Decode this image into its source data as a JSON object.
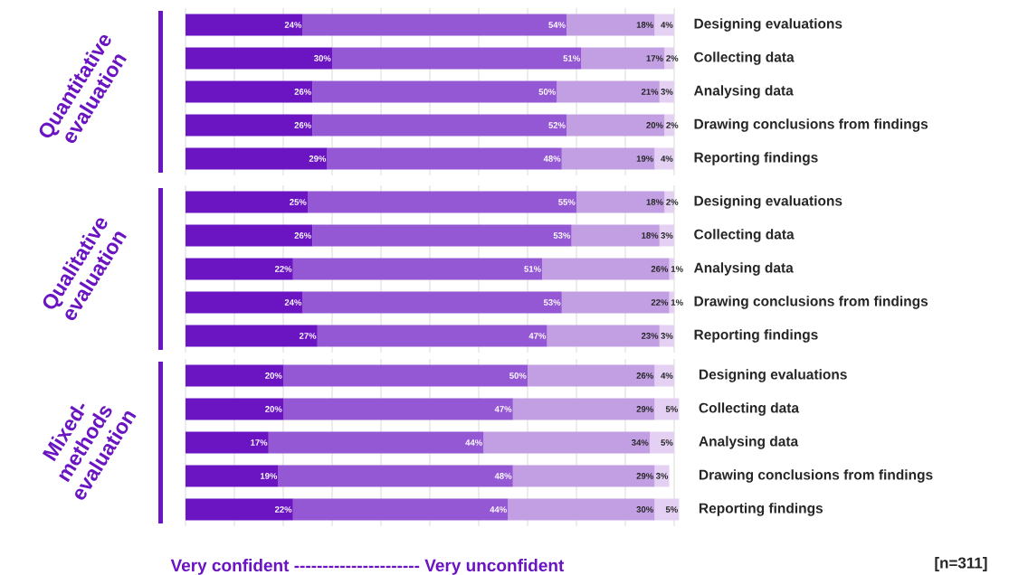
{
  "chart_data": [
    {
      "type": "bar",
      "orientation": "horizontal",
      "stacked": true,
      "title": "Quantitative evaluation",
      "categories": [
        "Designing evaluations",
        "Collecting data",
        "Analysing data",
        "Drawing conclusions from findings",
        "Reporting findings"
      ],
      "series": [
        {
          "color": "#6a14c2",
          "values": [
            24,
            30,
            26,
            26,
            29
          ],
          "value_labels": [
            "24%",
            "30%",
            "26%",
            "26%",
            "29%"
          ]
        },
        {
          "color": "#9558d4",
          "values": [
            54,
            51,
            50,
            52,
            48
          ],
          "value_labels": [
            "54%",
            "51%",
            "50%",
            "52%",
            "48%"
          ]
        },
        {
          "color": "#c29fe3",
          "values": [
            18,
            17,
            21,
            20,
            19
          ],
          "value_labels": [
            "18%",
            "17%",
            "21%",
            "20%",
            "19%"
          ]
        },
        {
          "color": "#e3d0f3",
          "values": [
            4,
            2,
            3,
            2,
            4
          ],
          "value_labels": [
            "4%",
            "2%",
            "3%",
            "2%",
            "4%"
          ]
        }
      ],
      "xticks": [
        {
          "value": 0,
          "label": null
        },
        {
          "value": 10,
          "label": null
        },
        {
          "value": 20,
          "label": null
        },
        {
          "value": 30,
          "label": null
        },
        {
          "value": 40,
          "label": null
        },
        {
          "value": 50,
          "label": null
        },
        {
          "value": 60,
          "label": null
        },
        {
          "value": 70,
          "label": null
        },
        {
          "value": 80,
          "label": null
        },
        {
          "value": 90,
          "label": null
        },
        {
          "value": 100,
          "label": null
        }
      ],
      "grid": "x",
      "tick_labels": "y"
    },
    {
      "type": "bar",
      "orientation": "horizontal",
      "stacked": true,
      "title": "Qualitative evaluation",
      "categories": [
        "Designing evaluations",
        "Collecting data",
        "Analysing data",
        "Drawing conclusions from findings",
        "Reporting findings"
      ],
      "series": [
        {
          "color": "#6a14c2",
          "values": [
            25,
            26,
            22,
            24,
            27
          ],
          "value_labels": [
            "25%",
            "26%",
            "22%",
            "24%",
            "27%"
          ]
        },
        {
          "color": "#9558d4",
          "values": [
            55,
            53,
            51,
            53,
            47
          ],
          "value_labels": [
            "55%",
            "53%",
            "51%",
            "53%",
            "47%"
          ]
        },
        {
          "color": "#c29fe3",
          "values": [
            18,
            18,
            26,
            22,
            23
          ],
          "value_labels": [
            "18%",
            "18%",
            "26%",
            "22%",
            "23%"
          ]
        },
        {
          "color": "#e3d0f3",
          "values": [
            2,
            3,
            1,
            1,
            3
          ],
          "value_labels": [
            "2%",
            "3%",
            "1%",
            "1%",
            "3%"
          ]
        }
      ],
      "xticks": [
        {
          "value": 0,
          "label": null
        },
        {
          "value": 10,
          "label": null
        },
        {
          "value": 20,
          "label": null
        },
        {
          "value": 30,
          "label": null
        },
        {
          "value": 40,
          "label": null
        },
        {
          "value": 50,
          "label": null
        },
        {
          "value": 60,
          "label": null
        },
        {
          "value": 70,
          "label": null
        },
        {
          "value": 80,
          "label": null
        },
        {
          "value": 90,
          "label": null
        },
        {
          "value": 100,
          "label": null
        }
      ],
      "grid": "x",
      "tick_labels": "y"
    },
    {
      "type": "bar",
      "orientation": "horizontal",
      "stacked": true,
      "title": "Mixed-methods evaluation",
      "categories": [
        "Designing evaluations",
        "Collecting data",
        "Analysing data",
        "Drawing conclusions from findings",
        "Reporting findings"
      ],
      "series": [
        {
          "color": "#6a14c2",
          "values": [
            20,
            20,
            17,
            19,
            22
          ],
          "value_labels": [
            "20%",
            "20%",
            "17%",
            "19%",
            "22%"
          ]
        },
        {
          "color": "#9558d4",
          "values": [
            50,
            47,
            44,
            48,
            44
          ],
          "value_labels": [
            "50%",
            "47%",
            "44%",
            "48%",
            "44%"
          ]
        },
        {
          "color": "#c29fe3",
          "values": [
            26,
            29,
            34,
            29,
            30
          ],
          "value_labels": [
            "26%",
            "29%",
            "34%",
            "29%",
            "30%"
          ]
        },
        {
          "color": "#e3d0f3",
          "values": [
            4,
            5,
            5,
            3,
            5
          ],
          "value_labels": [
            "4%",
            "5%",
            "5%",
            "3%",
            "5%"
          ]
        }
      ],
      "xticks": [
        {
          "value": 0,
          "label": null
        },
        {
          "value": 10,
          "label": null
        },
        {
          "value": 20,
          "label": null
        },
        {
          "value": 30,
          "label": null
        },
        {
          "value": 40,
          "label": null
        },
        {
          "value": 50,
          "label": null
        },
        {
          "value": 60,
          "label": null
        },
        {
          "value": 70,
          "label": null
        },
        {
          "value": 80,
          "label": null
        },
        {
          "value": 90,
          "label": null
        },
        {
          "value": 100,
          "label": null
        }
      ],
      "grid": "x",
      "tick_labels": "y",
      "annotations": [
        "Very confident ---------------------- Very unconfident",
        "[n=311]"
      ]
    }
  ]
}
